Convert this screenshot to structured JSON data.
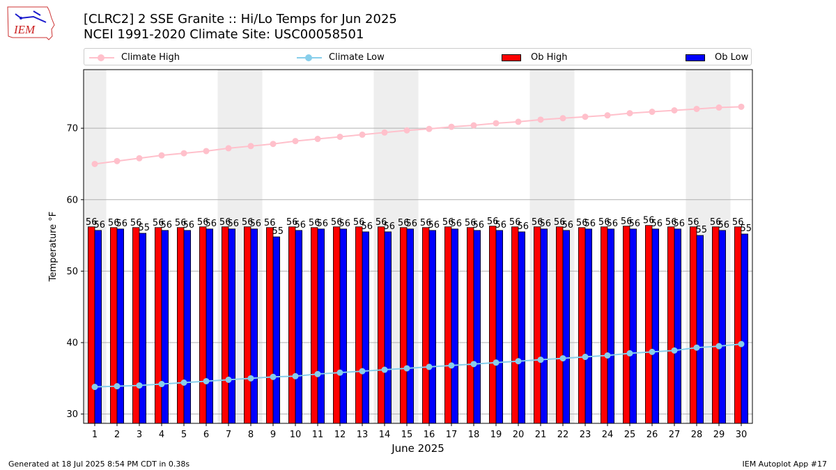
{
  "header": {
    "title_line1": "[CLRC2] 2 SSE Granite :: Hi/Lo Temps for Jun 2025",
    "title_line2": "NCEI 1991-2020 Climate Site: USC00058501",
    "logo_text": "IEM"
  },
  "legend": {
    "climate_high": "Climate High",
    "climate_low": "Climate Low",
    "ob_high": "Ob High",
    "ob_low": "Ob Low"
  },
  "footer": {
    "generated": "Generated at 18 Jul 2025 8:54 PM CDT in 0.38s",
    "app": "IEM Autoplot App #17"
  },
  "colors": {
    "climate_high": "#ffc0cb",
    "climate_low": "#87ceeb",
    "ob_high": "#ff0000",
    "ob_low": "#0000ff",
    "weekend_shade": "#eeeeee"
  },
  "chart_data": {
    "type": "bar",
    "xlabel": "June 2025",
    "ylabel": "Temperature °F",
    "ylim": [
      28.7,
      78.2
    ],
    "yticks": [
      30,
      40,
      50,
      60,
      70
    ],
    "grid": "horizontal",
    "legend_position": "top",
    "categories": [
      "1",
      "2",
      "3",
      "4",
      "5",
      "6",
      "7",
      "8",
      "9",
      "10",
      "11",
      "12",
      "13",
      "14",
      "15",
      "16",
      "17",
      "18",
      "19",
      "20",
      "21",
      "22",
      "23",
      "24",
      "25",
      "26",
      "27",
      "28",
      "29",
      "30"
    ],
    "shaded_days": [
      1,
      7,
      8,
      14,
      15,
      21,
      22,
      28,
      29
    ],
    "series": [
      {
        "name": "Ob High",
        "kind": "bar",
        "values": [
          56.2,
          56.1,
          56.1,
          56.1,
          56.1,
          56.2,
          56.2,
          56.2,
          56.1,
          56.2,
          56.1,
          56.2,
          56.2,
          56.2,
          56.1,
          56.1,
          56.2,
          56.1,
          56.3,
          56.2,
          56.2,
          56.2,
          56.1,
          56.2,
          56.3,
          56.4,
          56.2,
          56.2,
          56.2,
          56.2
        ],
        "labels": [
          "56",
          "56",
          "56",
          "56",
          "56",
          "56",
          "56",
          "56",
          "56",
          "56",
          "56",
          "56",
          "56",
          "56",
          "56",
          "56",
          "56",
          "56",
          "56",
          "56",
          "56",
          "56",
          "56",
          "56",
          "56",
          "56",
          "56",
          "56",
          "56",
          "56"
        ]
      },
      {
        "name": "Ob Low",
        "kind": "bar",
        "values": [
          55.7,
          55.9,
          55.3,
          55.7,
          55.7,
          55.9,
          55.9,
          55.9,
          54.8,
          55.7,
          55.9,
          55.9,
          55.5,
          55.5,
          55.9,
          55.7,
          55.9,
          55.7,
          55.7,
          55.5,
          55.9,
          55.7,
          55.9,
          55.9,
          55.9,
          55.9,
          55.9,
          55.0,
          55.7,
          55.2
        ],
        "labels": [
          "56",
          "56",
          "55",
          "56",
          "56",
          "56",
          "56",
          "56",
          "55",
          "56",
          "56",
          "56",
          "56",
          "56",
          "56",
          "56",
          "56",
          "56",
          "56",
          "56",
          "56",
          "56",
          "56",
          "56",
          "56",
          "56",
          "56",
          "55",
          "56",
          "55"
        ]
      },
      {
        "name": "Climate High",
        "kind": "line",
        "values": [
          65.0,
          65.4,
          65.8,
          66.2,
          66.5,
          66.8,
          67.2,
          67.5,
          67.8,
          68.2,
          68.5,
          68.8,
          69.1,
          69.4,
          69.7,
          69.9,
          70.2,
          70.4,
          70.7,
          70.9,
          71.2,
          71.4,
          71.6,
          71.8,
          72.1,
          72.3,
          72.5,
          72.7,
          72.9,
          73.0
        ]
      },
      {
        "name": "Climate Low",
        "kind": "line",
        "values": [
          33.8,
          33.9,
          34.0,
          34.2,
          34.4,
          34.6,
          34.8,
          35.0,
          35.2,
          35.3,
          35.6,
          35.8,
          36.0,
          36.2,
          36.4,
          36.6,
          36.8,
          37.0,
          37.2,
          37.4,
          37.6,
          37.8,
          38.0,
          38.2,
          38.5,
          38.7,
          38.9,
          39.3,
          39.5,
          39.8
        ]
      }
    ]
  }
}
